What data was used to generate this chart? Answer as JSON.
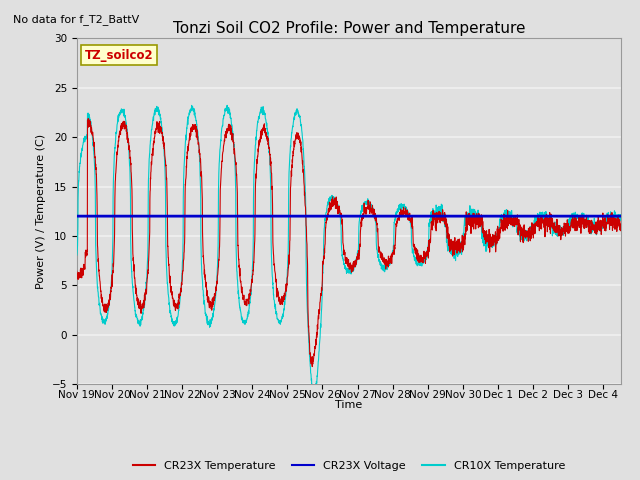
{
  "title": "Tonzi Soil CO2 Profile: Power and Temperature",
  "subtitle": "No data for f_T2_BattV",
  "ylabel": "Power (V) / Temperature (C)",
  "xlabel": "Time",
  "ylim": [
    -5,
    30
  ],
  "yticks": [
    -5,
    0,
    5,
    10,
    15,
    20,
    25,
    30
  ],
  "background_color": "#e0e0e0",
  "plot_bg_color": "#e0e0e0",
  "grid_color": "#f0f0f0",
  "legend_label": "TZ_soilco2",
  "legend_items": [
    "CR23X Temperature",
    "CR23X Voltage",
    "CR10X Temperature"
  ],
  "voltage_value": 12.0,
  "cr23x_color": "#cc0000",
  "cr10x_color": "#00cccc",
  "voltage_color": "#0000cc",
  "title_fontsize": 11,
  "axis_fontsize": 8,
  "tick_fontsize": 7.5
}
